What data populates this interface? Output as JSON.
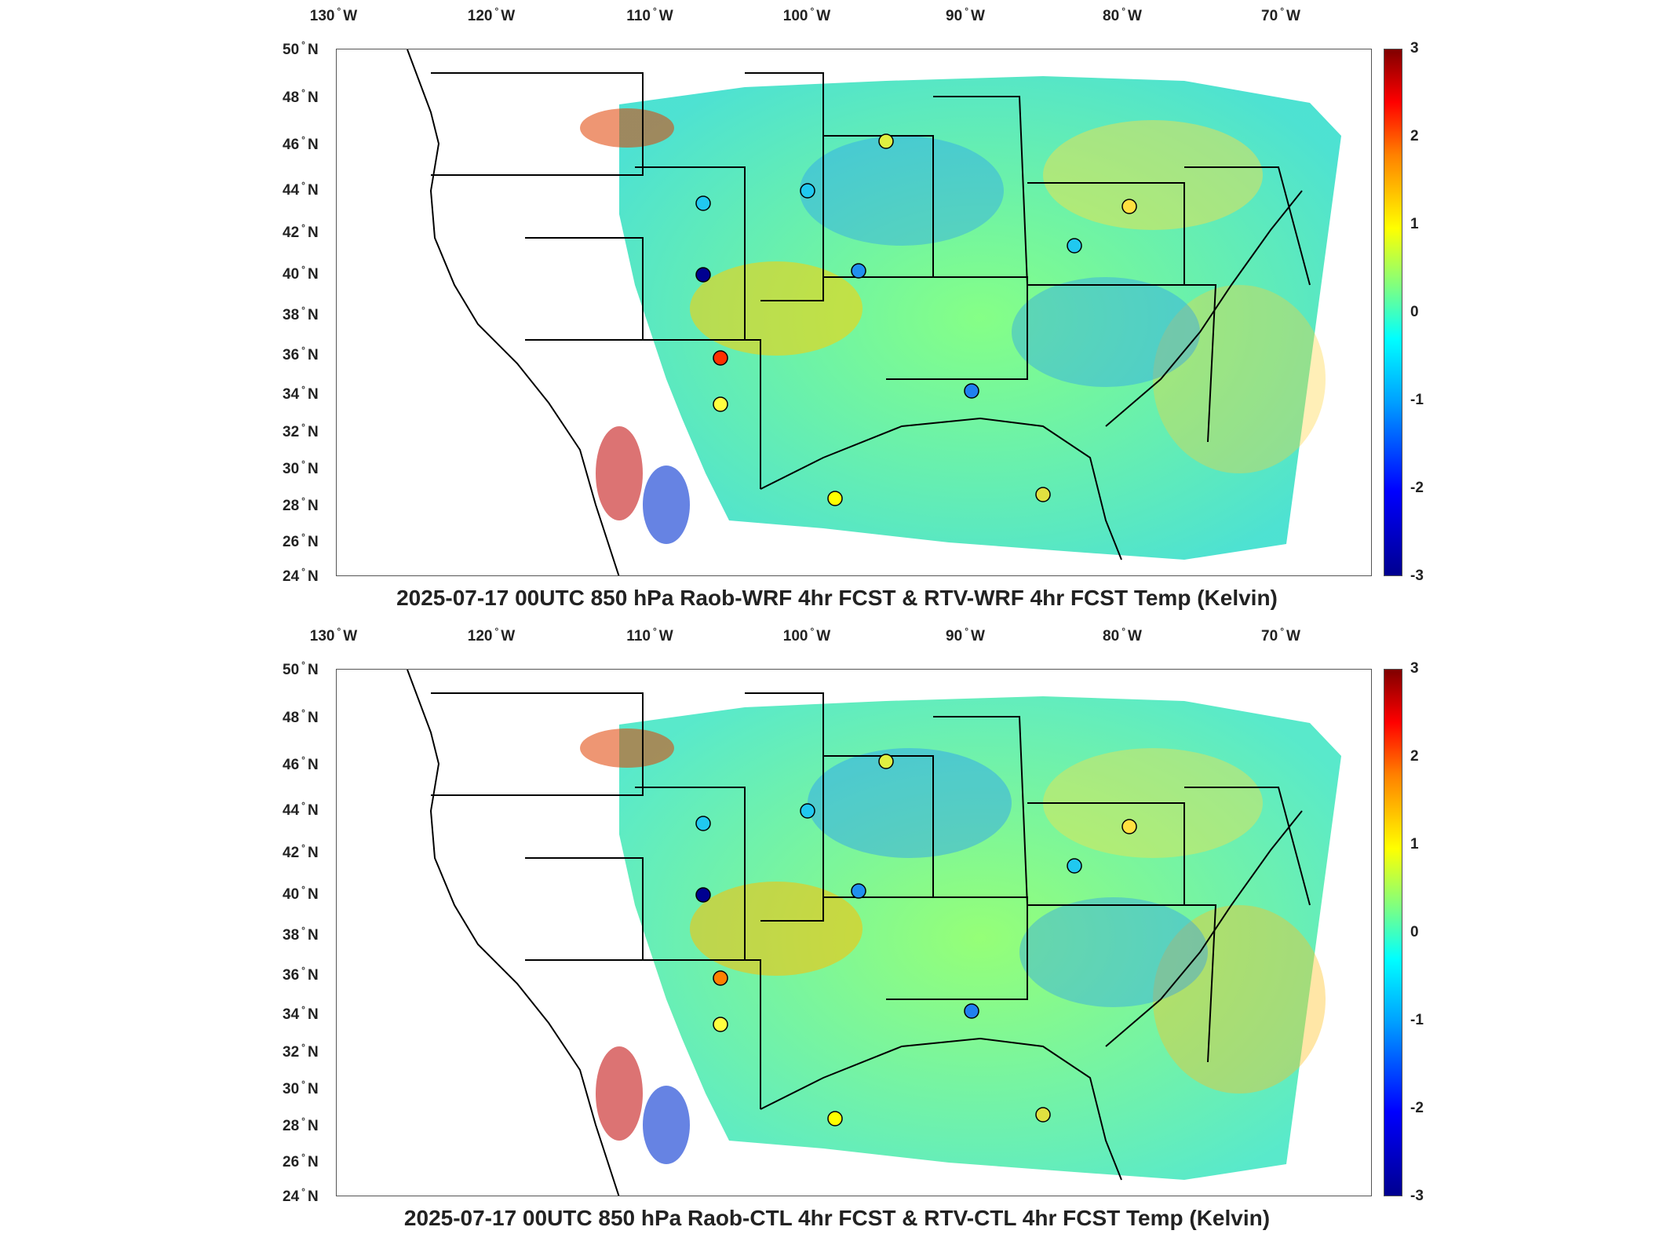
{
  "lon_labels": [
    {
      "deg": "130",
      "hemi": "W"
    },
    {
      "deg": "120",
      "hemi": "W"
    },
    {
      "deg": "110",
      "hemi": "W"
    },
    {
      "deg": "100",
      "hemi": "W"
    },
    {
      "deg": "90",
      "hemi": "W"
    },
    {
      "deg": "80",
      "hemi": "W"
    },
    {
      "deg": "70",
      "hemi": "W"
    }
  ],
  "lat_labels": [
    {
      "deg": "50",
      "hemi": "N"
    },
    {
      "deg": "48",
      "hemi": "N"
    },
    {
      "deg": "46",
      "hemi": "N"
    },
    {
      "deg": "44",
      "hemi": "N"
    },
    {
      "deg": "42",
      "hemi": "N"
    },
    {
      "deg": "40",
      "hemi": "N"
    },
    {
      "deg": "38",
      "hemi": "N"
    },
    {
      "deg": "36",
      "hemi": "N"
    },
    {
      "deg": "34",
      "hemi": "N"
    },
    {
      "deg": "32",
      "hemi": "N"
    },
    {
      "deg": "30",
      "hemi": "N"
    },
    {
      "deg": "28",
      "hemi": "N"
    },
    {
      "deg": "26",
      "hemi": "N"
    },
    {
      "deg": "24",
      "hemi": "N"
    }
  ],
  "colorbar": {
    "ticks": [
      "3",
      "2",
      "1",
      "0",
      "-1",
      "-2",
      "-3"
    ],
    "range": [
      -3,
      3
    ],
    "colormap": "jet"
  },
  "panels": [
    {
      "title": "2025-07-17 00UTC 850 hPa Raob-WRF 4hr FCST & RTV-WRF 4hr FCST Temp (Kelvin)"
    },
    {
      "title": "2025-07-17 00UTC 850 hPa Raob-CTL 4hr FCST & RTV-CTL 4hr FCST Temp (Kelvin)"
    }
  ],
  "colors": {
    "outline": "#000000",
    "frame": "#555555"
  }
}
